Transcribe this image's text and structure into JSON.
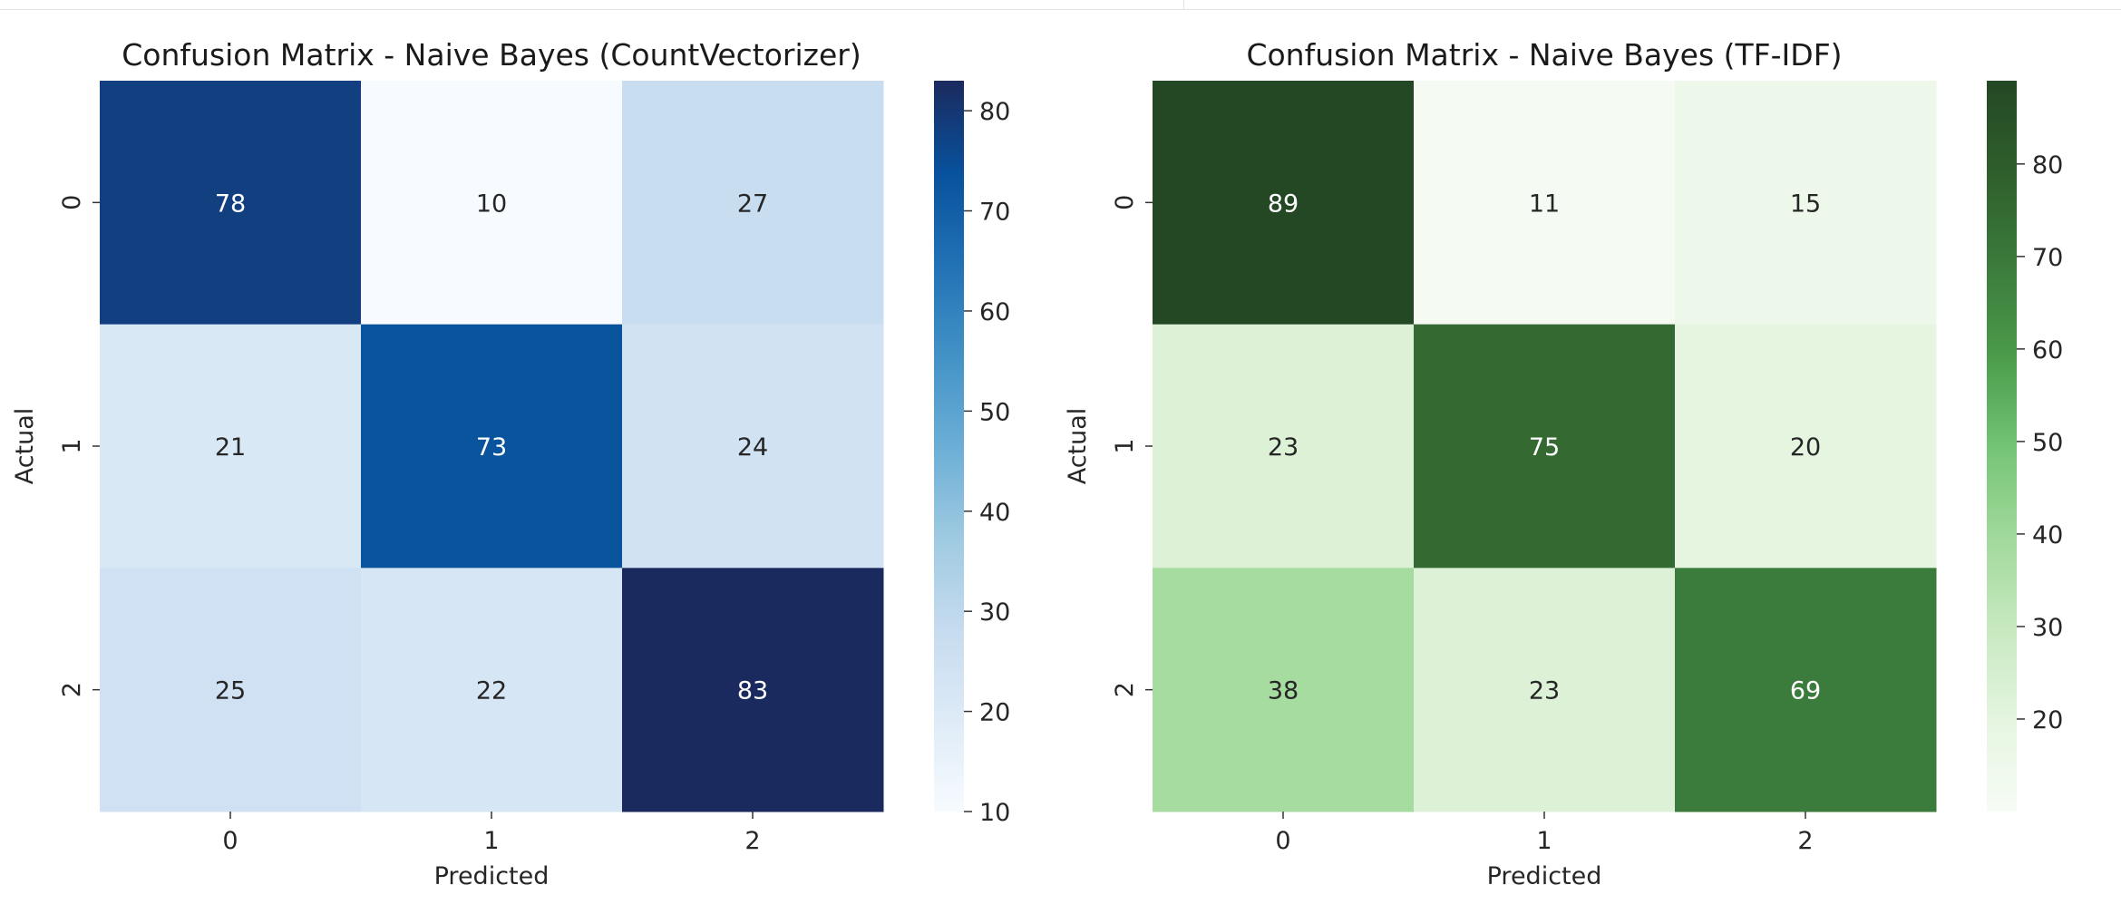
{
  "chart_data": [
    {
      "type": "heatmap",
      "title": "Confusion Matrix - Naive Bayes (CountVectorizer)",
      "xlabel": "Predicted",
      "ylabel": "Actual",
      "x_tick_labels": [
        "0",
        "1",
        "2"
      ],
      "y_tick_labels": [
        "0",
        "1",
        "2"
      ],
      "matrix": [
        [
          78,
          10,
          27
        ],
        [
          21,
          73,
          24
        ],
        [
          25,
          22,
          83
        ]
      ],
      "colormap": "Blues",
      "colorbar_ticks": [
        10,
        20,
        30,
        40,
        50,
        60,
        70,
        80
      ],
      "colorbar_range": [
        10,
        83
      ],
      "color_stops": [
        "#f7fbff",
        "#deebf7",
        "#c6dbef",
        "#9ecae1",
        "#6baed6",
        "#4292c6",
        "#2171b5",
        "#08519c",
        "#1b2a5e"
      ]
    },
    {
      "type": "heatmap",
      "title": "Confusion Matrix - Naive Bayes (TF-IDF)",
      "xlabel": "Predicted",
      "ylabel": "Actual",
      "x_tick_labels": [
        "0",
        "1",
        "2"
      ],
      "y_tick_labels": [
        "0",
        "1",
        "2"
      ],
      "matrix": [
        [
          89,
          11,
          15
        ],
        [
          23,
          75,
          20
        ],
        [
          38,
          23,
          69
        ]
      ],
      "colormap": "Greens",
      "colorbar_ticks": [
        20,
        30,
        40,
        50,
        60,
        70,
        80
      ],
      "colorbar_range": [
        10,
        89
      ],
      "color_stops": [
        "#f7fcf5",
        "#e5f5e0",
        "#c7e9c0",
        "#a1d99b",
        "#74c476",
        "#4a9a4a",
        "#3b7a3b",
        "#2f5f2c",
        "#244724"
      ]
    }
  ]
}
